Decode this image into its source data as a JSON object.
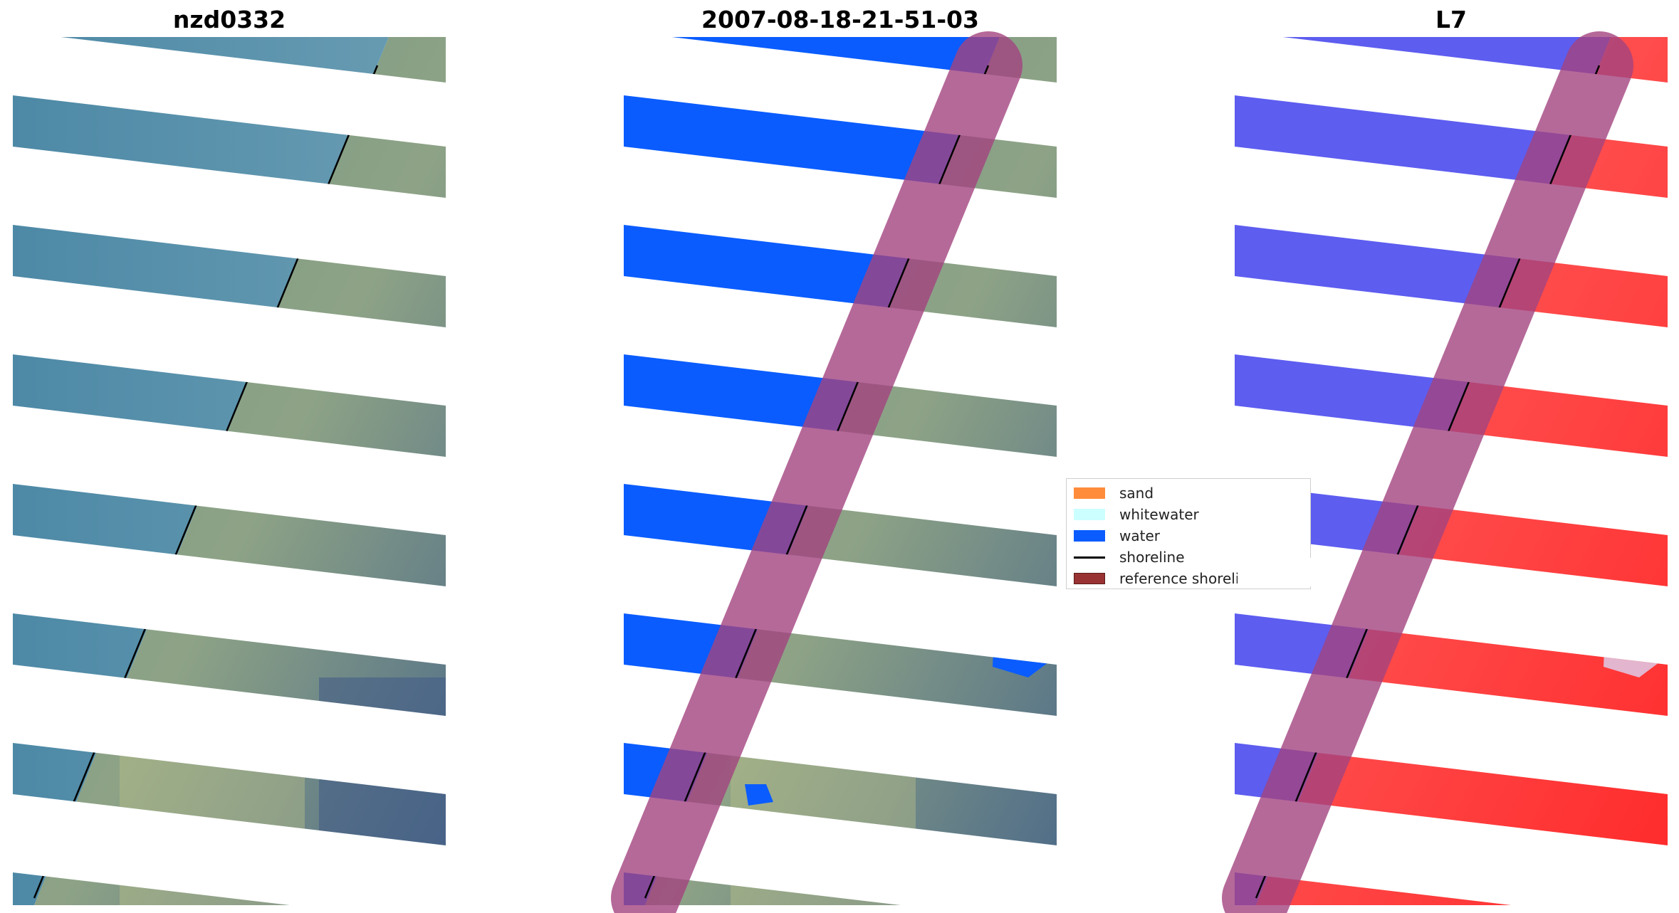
{
  "panels": [
    {
      "title": "nzd0332",
      "kind": "rgb"
    },
    {
      "title": "2007-08-18-21-51-03",
      "kind": "classified"
    },
    {
      "title": "L7",
      "kind": "index"
    }
  ],
  "legend": {
    "items": [
      {
        "label": "sand",
        "color": "#ff8c3a",
        "type": "patch"
      },
      {
        "label": "whitewater",
        "color": "#ccffff",
        "type": "patch"
      },
      {
        "label": "water",
        "color": "#0a5cff",
        "type": "patch"
      },
      {
        "label": "shoreline",
        "color": "#000000",
        "type": "line"
      },
      {
        "label": "reference shoreline buffer",
        "color": "#993333",
        "type": "patch"
      }
    ]
  },
  "colors": {
    "water": "#0a5cff",
    "ocean_rgb": "#4a86a8",
    "land_rgb": "#6f8f7c",
    "buffer": "#a3447f",
    "index_water": "#5d5df0",
    "index_land": "#ff3b3b",
    "shoreline": "#000000"
  }
}
